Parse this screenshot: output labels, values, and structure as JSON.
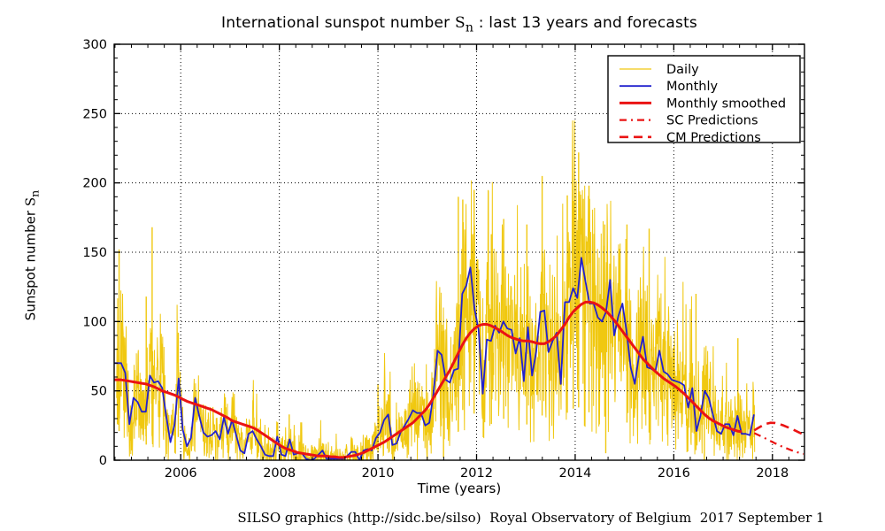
{
  "title": {
    "prefix": "International sunspot number ",
    "symbol": "S",
    "subscript": "n",
    "suffix": " : last 13 years and forecasts"
  },
  "caption": "SILSO graphics (http://sidc.be/silso)  Royal Observatory of Belgium  2017 September 1",
  "axes": {
    "x": {
      "label": "Time (years)",
      "min": 2004.65,
      "max": 2018.65,
      "major_ticks": [
        2006,
        2008,
        2010,
        2012,
        2014,
        2016,
        2018
      ],
      "major_tick_labels": [
        "2006",
        "2008",
        "2010",
        "2012",
        "2014",
        "2016",
        "2018"
      ],
      "minor_step_years": 0.33333
    },
    "y": {
      "label_prefix": "Sunspot number ",
      "label_symbol": "S",
      "label_subscript": "n",
      "min": 0,
      "max": 300,
      "major_ticks": [
        0,
        50,
        100,
        150,
        200,
        250,
        300
      ],
      "major_tick_labels": [
        "0",
        "50",
        "100",
        "150",
        "200",
        "250",
        "300"
      ],
      "minor_step": 10
    }
  },
  "legend": {
    "items": [
      {
        "label": "Daily",
        "color": "#F0C810",
        "width": 1.3,
        "dash": ""
      },
      {
        "label": "Monthly",
        "color": "#2121CE",
        "width": 1.8,
        "dash": ""
      },
      {
        "label": "Monthly smoothed",
        "color": "#EA1313",
        "width": 3.0,
        "dash": ""
      },
      {
        "label": "SC Predictions",
        "color": "#EA1313",
        "width": 2.2,
        "dash": "8 5 2 5"
      },
      {
        "label": "CM Predictions",
        "color": "#EA1313",
        "width": 2.6,
        "dash": "10 6"
      }
    ]
  },
  "colors": {
    "daily": "#F0C810",
    "monthly": "#2121CE",
    "smoothed": "#EA1313",
    "predictions": "#EA1313",
    "axis": "#000000",
    "grid": "#000000",
    "background": "#ffffff"
  },
  "chart_data": {
    "type": "line",
    "title": "International sunspot number Sn : last 13 years and forecasts",
    "xlabel": "Time (years)",
    "ylabel": "Sunspot number Sn",
    "xlim": [
      2004.65,
      2018.65
    ],
    "ylim": [
      0,
      300
    ],
    "grid": true,
    "legend_position": "upper right",
    "series": [
      {
        "name": "Monthly",
        "x_start": 2004.7917,
        "x_step_years": 0.0833333,
        "values": [
          70,
          63,
          26,
          45,
          42,
          35,
          35,
          61,
          56,
          57,
          52,
          31,
          13,
          26,
          59,
          22,
          10,
          16,
          45,
          32,
          20,
          17,
          18,
          21,
          15,
          31,
          19,
          29,
          18,
          7,
          5,
          19,
          21,
          15,
          10,
          4,
          3,
          3,
          17,
          4,
          3,
          15,
          4,
          5,
          5,
          1,
          0,
          1,
          4,
          7,
          1,
          1,
          1,
          1,
          1,
          3,
          6,
          6,
          0,
          7,
          8,
          7,
          16,
          20,
          29,
          33,
          11,
          12,
          20,
          25,
          30,
          36,
          34,
          34,
          25,
          27,
          48,
          79,
          76,
          58,
          56,
          65,
          66,
          120,
          126,
          139,
          109,
          94,
          48,
          87,
          86,
          97,
          92,
          100,
          95,
          94,
          77,
          88,
          57,
          96,
          61,
          78,
          107,
          108,
          78,
          86,
          92,
          55,
          114,
          114,
          124,
          117,
          146,
          129,
          113,
          113,
          103,
          100,
          107,
          130,
          90,
          104,
          113,
          93,
          67,
          55,
          75,
          89,
          67,
          66,
          64,
          79,
          64,
          62,
          58,
          57,
          56,
          54,
          38,
          52,
          21,
          32,
          50,
          45,
          33,
          21,
          19,
          26,
          26,
          18,
          32,
          19,
          19,
          18,
          33
        ]
      },
      {
        "name": "Monthly smoothed",
        "x_start": 2004.7917,
        "x_step_years": 0.0833333,
        "values": [
          58,
          57.5,
          57,
          56.5,
          56,
          55.5,
          55,
          54,
          53,
          51.5,
          50,
          49,
          48,
          47,
          45.5,
          44,
          42.5,
          41.5,
          40.5,
          39.5,
          38.5,
          37.5,
          36.5,
          35,
          33.5,
          32,
          30.5,
          28.5,
          27.5,
          26.5,
          25.5,
          24.5,
          23.5,
          22,
          20,
          18,
          16,
          14,
          12,
          10,
          8.5,
          7.5,
          6.5,
          5.5,
          5,
          4.5,
          4,
          3.5,
          3,
          3,
          3,
          2.5,
          2.5,
          2,
          2,
          2.5,
          3,
          3.5,
          4.5,
          5.5,
          7,
          8.5,
          10,
          11.5,
          13,
          15,
          17,
          19,
          21,
          23,
          25,
          27,
          30,
          33,
          36,
          40,
          45,
          50,
          55,
          60,
          65,
          71,
          77,
          83,
          88,
          92,
          95,
          97,
          98,
          98,
          97,
          95.5,
          94,
          92,
          90,
          88.5,
          87.5,
          86.5,
          86,
          86,
          85.5,
          84.5,
          84,
          84,
          85.5,
          87.5,
          90,
          94,
          98,
          103,
          107,
          110,
          112.5,
          114,
          114,
          113.5,
          112,
          110,
          107.5,
          104.5,
          101,
          97,
          93,
          89,
          85,
          81,
          77,
          73,
          70,
          67,
          64,
          61.5,
          59,
          57,
          55,
          53,
          50.5,
          48,
          45,
          42,
          39,
          36,
          33,
          30.5,
          28.5,
          27,
          25.5,
          24,
          23,
          22,
          21,
          20.5
        ]
      },
      {
        "name": "SC Predictions",
        "x_start": 2017.63,
        "x_step_years": 0.0833333,
        "values": [
          19.5,
          18.2,
          16.8,
          15.3,
          13.8,
          12.3,
          10.9,
          9.6,
          8.4,
          7.2,
          6.2,
          5.3,
          4.5
        ]
      },
      {
        "name": "CM Predictions",
        "x_start": 2017.63,
        "x_step_years": 0.0833333,
        "values": [
          21.5,
          23.3,
          25.0,
          26.3,
          27.0,
          26.9,
          26.2,
          25.2,
          24.0,
          22.7,
          21.3,
          19.9,
          18.5
        ]
      },
      {
        "name": "Daily",
        "render": "stochastic_band_around_monthly",
        "x_start": 2004.7,
        "x_end": 2017.64,
        "spikes": [
          {
            "x": 2004.75,
            "v": 152
          },
          {
            "x": 2005.3,
            "v": 118
          },
          {
            "x": 2005.42,
            "v": 168
          },
          {
            "x": 2005.95,
            "v": 92
          },
          {
            "x": 2008.2,
            "v": 33
          },
          {
            "x": 2010.0,
            "v": 55
          },
          {
            "x": 2011.33,
            "v": 2
          },
          {
            "x": 2011.63,
            "v": 190
          },
          {
            "x": 2011.72,
            "v": 188
          },
          {
            "x": 2011.95,
            "v": 195
          },
          {
            "x": 2012.3,
            "v": 163
          },
          {
            "x": 2012.55,
            "v": 174
          },
          {
            "x": 2013.02,
            "v": 170
          },
          {
            "x": 2013.33,
            "v": 205
          },
          {
            "x": 2013.84,
            "v": 191
          },
          {
            "x": 2013.96,
            "v": 187
          },
          {
            "x": 2014.07,
            "v": 222
          },
          {
            "x": 2014.28,
            "v": 198
          },
          {
            "x": 2014.6,
            "v": 170
          },
          {
            "x": 2014.62,
            "v": 5
          },
          {
            "x": 2015.05,
            "v": 170
          },
          {
            "x": 2015.5,
            "v": 167
          },
          {
            "x": 2016.45,
            "v": 120
          },
          {
            "x": 2016.62,
            "v": 0
          },
          {
            "x": 2017.3,
            "v": 88
          }
        ]
      }
    ]
  }
}
